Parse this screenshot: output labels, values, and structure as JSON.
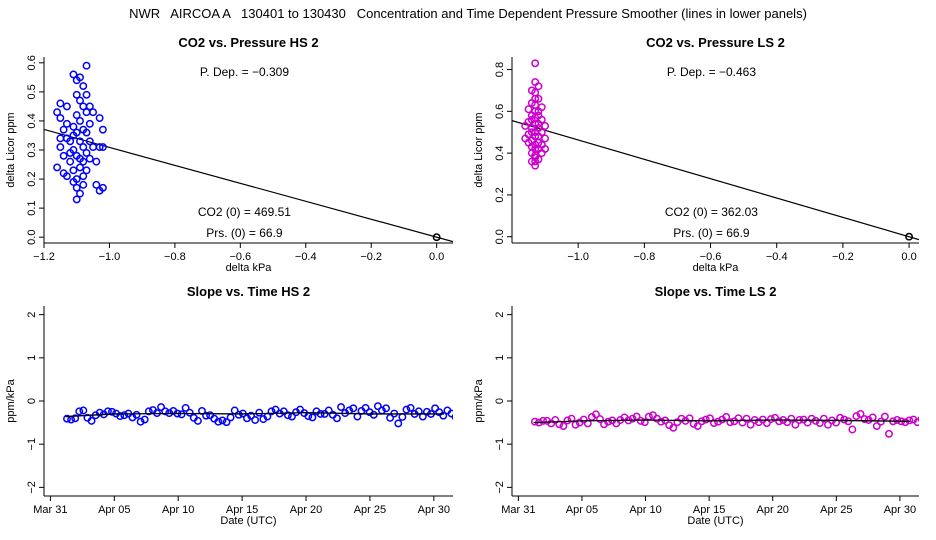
{
  "page_title": "NWR   AIRCOA A   130401 to 130430   Concentration and Time Dependent Pressure Smoother (lines in lower panels)",
  "colors": {
    "hs": "#0000ff",
    "ls": "#cc00cc",
    "axis": "#000000"
  },
  "chart_data": [
    {
      "type": "scatter",
      "id": "p1",
      "title": "CO2 vs. Pressure HS 2",
      "xlabel": "delta kPa",
      "ylabel": "delta Licor ppm",
      "xlim": [
        -1.2,
        0.05
      ],
      "ylim": [
        -0.02,
        0.62
      ],
      "xticks": [
        -1.2,
        -1.0,
        -0.8,
        -0.6,
        -0.4,
        -0.2,
        0.0
      ],
      "xtick_labels": [
        "−1.2",
        "−1.0",
        "−0.8",
        "−0.6",
        "−0.4",
        "−0.2",
        "0.0"
      ],
      "yticks": [
        0.0,
        0.1,
        0.2,
        0.3,
        0.4,
        0.5,
        0.6
      ],
      "ytick_labels": [
        "0.0",
        "0.1",
        "0.2",
        "0.3",
        "0.4",
        "0.5",
        "0.6"
      ],
      "color": "#0000ff",
      "regression_line": {
        "slope": -0.309,
        "intercept": 0.0
      },
      "origin_point": [
        0.0,
        0.0
      ],
      "annotations": {
        "pdep": "P. Dep. =  −0.309",
        "co2_0": "CO2 (0) =  469.51",
        "prs_0": "Prs. (0) =  66.9"
      },
      "points": [
        [
          -1.16,
          0.24
        ],
        [
          -1.16,
          0.43
        ],
        [
          -1.15,
          0.46
        ],
        [
          -1.15,
          0.41
        ],
        [
          -1.15,
          0.34
        ],
        [
          -1.15,
          0.31
        ],
        [
          -1.14,
          0.37
        ],
        [
          -1.14,
          0.28
        ],
        [
          -1.14,
          0.22
        ],
        [
          -1.13,
          0.45
        ],
        [
          -1.13,
          0.39
        ],
        [
          -1.13,
          0.21
        ],
        [
          -1.13,
          0.34
        ],
        [
          -1.12,
          0.33
        ],
        [
          -1.12,
          0.29
        ],
        [
          -1.12,
          0.26
        ],
        [
          -1.11,
          0.56
        ],
        [
          -1.11,
          0.38
        ],
        [
          -1.11,
          0.35
        ],
        [
          -1.11,
          0.3
        ],
        [
          -1.11,
          0.23
        ],
        [
          -1.11,
          0.19
        ],
        [
          -1.1,
          0.54
        ],
        [
          -1.1,
          0.49
        ],
        [
          -1.1,
          0.42
        ],
        [
          -1.1,
          0.36
        ],
        [
          -1.1,
          0.28
        ],
        [
          -1.1,
          0.2
        ],
        [
          -1.1,
          0.17
        ],
        [
          -1.1,
          0.13
        ],
        [
          -1.09,
          0.55
        ],
        [
          -1.09,
          0.47
        ],
        [
          -1.09,
          0.4
        ],
        [
          -1.09,
          0.33
        ],
        [
          -1.09,
          0.27
        ],
        [
          -1.09,
          0.24
        ],
        [
          -1.09,
          0.15
        ],
        [
          -1.08,
          0.52
        ],
        [
          -1.08,
          0.45
        ],
        [
          -1.08,
          0.37
        ],
        [
          -1.08,
          0.31
        ],
        [
          -1.08,
          0.26
        ],
        [
          -1.08,
          0.21
        ],
        [
          -1.08,
          0.18
        ],
        [
          -1.07,
          0.59
        ],
        [
          -1.07,
          0.49
        ],
        [
          -1.07,
          0.43
        ],
        [
          -1.07,
          0.36
        ],
        [
          -1.07,
          0.29
        ],
        [
          -1.07,
          0.23
        ],
        [
          -1.06,
          0.45
        ],
        [
          -1.06,
          0.39
        ],
        [
          -1.06,
          0.33
        ],
        [
          -1.06,
          0.27
        ],
        [
          -1.05,
          0.43
        ],
        [
          -1.05,
          0.31
        ],
        [
          -1.04,
          0.18
        ],
        [
          -1.04,
          0.26
        ],
        [
          -1.03,
          0.16
        ],
        [
          -1.03,
          0.41
        ],
        [
          -1.03,
          0.31
        ],
        [
          -1.02,
          0.37
        ],
        [
          -1.02,
          0.17
        ],
        [
          -1.02,
          0.31
        ]
      ]
    },
    {
      "type": "scatter",
      "id": "p2",
      "title": "CO2 vs. Pressure LS 2",
      "xlabel": "delta kPa",
      "ylabel": "delta Licor ppm",
      "xlim": [
        -1.2,
        0.03
      ],
      "ylim": [
        -0.03,
        0.86
      ],
      "xticks": [
        -1.0,
        -0.8,
        -0.6,
        -0.4,
        -0.2,
        0.0
      ],
      "xtick_labels": [
        "−1.0",
        "−0.8",
        "−0.6",
        "−0.4",
        "−0.2",
        "0.0"
      ],
      "yticks": [
        0.0,
        0.2,
        0.4,
        0.6,
        0.8
      ],
      "ytick_labels": [
        "0.0",
        "0.2",
        "0.4",
        "0.6",
        "0.8"
      ],
      "color": "#cc00cc",
      "regression_line": {
        "slope": -0.463,
        "intercept": 0.0
      },
      "origin_point": [
        0.0,
        0.0
      ],
      "annotations": {
        "pdep": "P. Dep. =  −0.463",
        "co2_0": "CO2 (0) =  362.03",
        "prs_0": "Prs. (0) =  66.9"
      },
      "points": [
        [
          -1.13,
          0.83
        ],
        [
          -1.13,
          0.74
        ],
        [
          -1.13,
          0.69
        ],
        [
          -1.13,
          0.63
        ],
        [
          -1.13,
          0.57
        ],
        [
          -1.13,
          0.5
        ],
        [
          -1.13,
          0.44
        ],
        [
          -1.13,
          0.38
        ],
        [
          -1.13,
          0.34
        ],
        [
          -1.14,
          0.7
        ],
        [
          -1.14,
          0.64
        ],
        [
          -1.14,
          0.58
        ],
        [
          -1.14,
          0.52
        ],
        [
          -1.14,
          0.46
        ],
        [
          -1.14,
          0.4
        ],
        [
          -1.14,
          0.36
        ],
        [
          -1.12,
          0.72
        ],
        [
          -1.12,
          0.66
        ],
        [
          -1.12,
          0.6
        ],
        [
          -1.12,
          0.54
        ],
        [
          -1.12,
          0.48
        ],
        [
          -1.12,
          0.42
        ],
        [
          -1.12,
          0.37
        ],
        [
          -1.15,
          0.61
        ],
        [
          -1.15,
          0.55
        ],
        [
          -1.15,
          0.49
        ],
        [
          -1.15,
          0.45
        ],
        [
          -1.11,
          0.62
        ],
        [
          -1.11,
          0.56
        ],
        [
          -1.11,
          0.5
        ],
        [
          -1.11,
          0.44
        ],
        [
          -1.11,
          0.4
        ],
        [
          -1.1,
          0.53
        ],
        [
          -1.1,
          0.47
        ],
        [
          -1.1,
          0.42
        ],
        [
          -1.13,
          0.66
        ],
        [
          -1.13,
          0.6
        ],
        [
          -1.13,
          0.54
        ],
        [
          -1.13,
          0.48
        ],
        [
          -1.13,
          0.42
        ],
        [
          -1.14,
          0.56
        ],
        [
          -1.14,
          0.5
        ],
        [
          -1.12,
          0.58
        ],
        [
          -1.12,
          0.52
        ],
        [
          -1.16,
          0.53
        ],
        [
          -1.16,
          0.47
        ],
        [
          -1.14,
          0.43
        ],
        [
          -1.12,
          0.45
        ],
        [
          -1.13,
          0.39
        ],
        [
          -1.13,
          0.36
        ]
      ]
    },
    {
      "type": "scatter",
      "id": "p3",
      "title": "Slope vs. Time HS 2",
      "xlabel": "Date (UTC)",
      "ylabel": "ppm/kPa",
      "xlim": [
        -0.5,
        31.5
      ],
      "ylim": [
        -2.2,
        2.2
      ],
      "xticks": [
        0,
        5,
        10,
        15,
        20,
        25,
        30
      ],
      "xtick_labels": [
        "Mar 31",
        "Apr 05",
        "Apr 10",
        "Apr 15",
        "Apr 20",
        "Apr 25",
        "Apr 30"
      ],
      "yticks": [
        -2,
        -1,
        0,
        1,
        2
      ],
      "ytick_labels": [
        "−2",
        "−1",
        "0",
        "1",
        "2"
      ],
      "color": "#0000ff",
      "smoother": {
        "x": [
          1.2,
          5,
          10,
          15,
          20,
          25,
          30.8
        ],
        "y": [
          -0.36,
          -0.3,
          -0.29,
          -0.3,
          -0.27,
          -0.3,
          -0.3
        ]
      },
      "series_x_start": 1.3,
      "series_x_step": 0.32,
      "series_y": [
        -0.41,
        -0.43,
        -0.4,
        -0.24,
        -0.22,
        -0.39,
        -0.46,
        -0.33,
        -0.27,
        -0.31,
        -0.24,
        -0.25,
        -0.29,
        -0.35,
        -0.33,
        -0.29,
        -0.38,
        -0.32,
        -0.48,
        -0.43,
        -0.24,
        -0.21,
        -0.28,
        -0.14,
        -0.24,
        -0.28,
        -0.23,
        -0.29,
        -0.31,
        -0.16,
        -0.27,
        -0.39,
        -0.46,
        -0.23,
        -0.34,
        -0.33,
        -0.41,
        -0.48,
        -0.45,
        -0.49,
        -0.38,
        -0.22,
        -0.32,
        -0.29,
        -0.4,
        -0.34,
        -0.44,
        -0.27,
        -0.42,
        -0.36,
        -0.24,
        -0.2,
        -0.29,
        -0.24,
        -0.33,
        -0.36,
        -0.26,
        -0.2,
        -0.28,
        -0.35,
        -0.38,
        -0.24,
        -0.3,
        -0.3,
        -0.22,
        -0.32,
        -0.4,
        -0.14,
        -0.28,
        -0.22,
        -0.17,
        -0.36,
        -0.23,
        -0.16,
        -0.26,
        -0.32,
        -0.12,
        -0.22,
        -0.17,
        -0.39,
        -0.29,
        -0.52,
        -0.37,
        -0.2,
        -0.16,
        -0.3,
        -0.24,
        -0.36,
        -0.25,
        -0.3,
        -0.17,
        -0.26,
        -0.34,
        -0.22,
        -0.29,
        -0.37,
        -0.31,
        -0.21,
        -0.27,
        -0.17
      ]
    },
    {
      "type": "scatter",
      "id": "p4",
      "title": "Slope vs. Time LS 2",
      "xlabel": "Date (UTC)",
      "ylabel": "ppm/kPa",
      "xlim": [
        -0.5,
        31.5
      ],
      "ylim": [
        -2.2,
        2.2
      ],
      "xticks": [
        0,
        5,
        10,
        15,
        20,
        25,
        30
      ],
      "xtick_labels": [
        "Mar 31",
        "Apr 05",
        "Apr 10",
        "Apr 15",
        "Apr 20",
        "Apr 25",
        "Apr 30"
      ],
      "yticks": [
        -2,
        -1,
        0,
        1,
        2
      ],
      "ytick_labels": [
        "−2",
        "−1",
        "0",
        "1",
        "2"
      ],
      "color": "#cc00cc",
      "smoother": {
        "x": [
          1.2,
          5,
          10,
          15,
          20,
          25,
          30.8
        ],
        "y": [
          -0.5,
          -0.46,
          -0.44,
          -0.46,
          -0.44,
          -0.45,
          -0.47
        ]
      },
      "series_x_start": 1.3,
      "series_x_step": 0.32,
      "series_y": [
        -0.48,
        -0.5,
        -0.46,
        -0.46,
        -0.52,
        -0.44,
        -0.54,
        -0.58,
        -0.45,
        -0.41,
        -0.55,
        -0.5,
        -0.43,
        -0.52,
        -0.37,
        -0.31,
        -0.42,
        -0.54,
        -0.48,
        -0.45,
        -0.52,
        -0.44,
        -0.38,
        -0.45,
        -0.41,
        -0.36,
        -0.46,
        -0.49,
        -0.36,
        -0.33,
        -0.41,
        -0.48,
        -0.45,
        -0.56,
        -0.62,
        -0.49,
        -0.41,
        -0.46,
        -0.4,
        -0.53,
        -0.58,
        -0.47,
        -0.43,
        -0.4,
        -0.51,
        -0.48,
        -0.43,
        -0.37,
        -0.49,
        -0.47,
        -0.4,
        -0.5,
        -0.41,
        -0.55,
        -0.44,
        -0.49,
        -0.43,
        -0.51,
        -0.42,
        -0.39,
        -0.47,
        -0.44,
        -0.49,
        -0.41,
        -0.55,
        -0.44,
        -0.43,
        -0.5,
        -0.41,
        -0.46,
        -0.51,
        -0.41,
        -0.55,
        -0.45,
        -0.5,
        -0.39,
        -0.43,
        -0.47,
        -0.66,
        -0.35,
        -0.3,
        -0.42,
        -0.44,
        -0.38,
        -0.58,
        -0.48,
        -0.36,
        -0.76,
        -0.47,
        -0.44,
        -0.47,
        -0.49,
        -0.45,
        -0.43,
        -0.49,
        -0.42,
        -0.49,
        -0.44,
        -0.43,
        -0.46
      ]
    }
  ]
}
